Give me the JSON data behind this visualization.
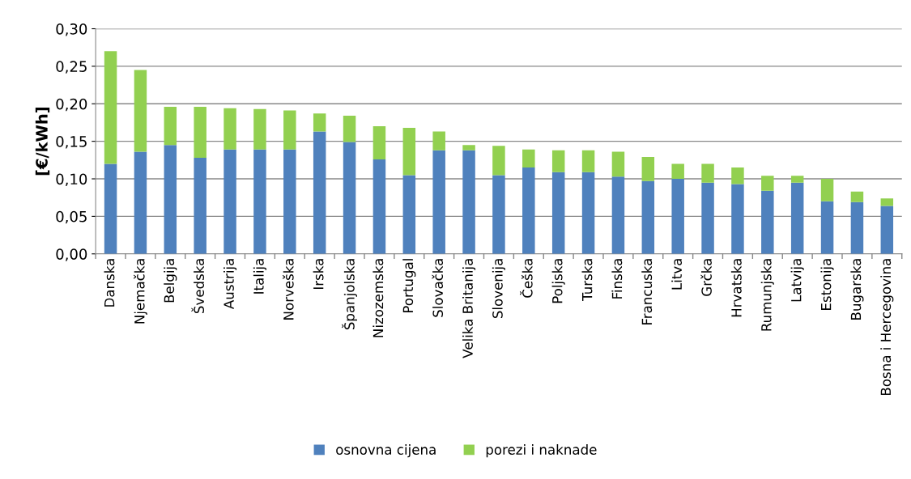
{
  "chart_data": {
    "type": "bar",
    "stacked": true,
    "ylabel": "[€/kWh]",
    "categories": [
      "Danska",
      "Njemačka",
      "Belgija",
      "Švedska",
      "Austrija",
      "Italija",
      "Norveška",
      "Irska",
      "Španjolska",
      "Nizozemska",
      "Portugal",
      "Slovačka",
      "Velika Britanija",
      "Slovenija",
      "Češka",
      "Poljska",
      "Turska",
      "Finska",
      "Francuska",
      "Litva",
      "Grčka",
      "Hrvatska",
      "Rumunjska",
      "Latvija",
      "Estonija",
      "Bugarska",
      "Bosna i Hercegovina"
    ],
    "series": [
      {
        "name": "osnovna cijena",
        "color": "#4f81bd",
        "values": [
          0.12,
          0.136,
          0.145,
          0.128,
          0.139,
          0.139,
          0.139,
          0.163,
          0.149,
          0.126,
          0.105,
          0.138,
          0.138,
          0.105,
          0.115,
          0.109,
          0.109,
          0.103,
          0.097,
          0.1,
          0.095,
          0.093,
          0.084,
          0.095,
          0.07,
          0.069,
          0.064
        ]
      },
      {
        "name": "porezi i naknade",
        "color": "#92d050",
        "values": [
          0.15,
          0.109,
          0.051,
          0.068,
          0.055,
          0.054,
          0.052,
          0.024,
          0.035,
          0.044,
          0.063,
          0.025,
          0.007,
          0.039,
          0.024,
          0.029,
          0.029,
          0.033,
          0.032,
          0.02,
          0.025,
          0.022,
          0.02,
          0.009,
          0.03,
          0.014,
          0.01
        ]
      }
    ],
    "ylim": [
      0,
      0.3
    ],
    "yticks": [
      {
        "value": 0,
        "label": "0,00"
      },
      {
        "value": 0.05,
        "label": "0,05"
      },
      {
        "value": 0.1,
        "label": "0,10"
      },
      {
        "value": 0.15,
        "label": "0,15"
      },
      {
        "value": 0.2,
        "label": "0,20"
      },
      {
        "value": 0.25,
        "label": "0,25"
      },
      {
        "value": 0.3,
        "label": "0,30"
      }
    ],
    "grid": "y",
    "legend": "bottom"
  }
}
